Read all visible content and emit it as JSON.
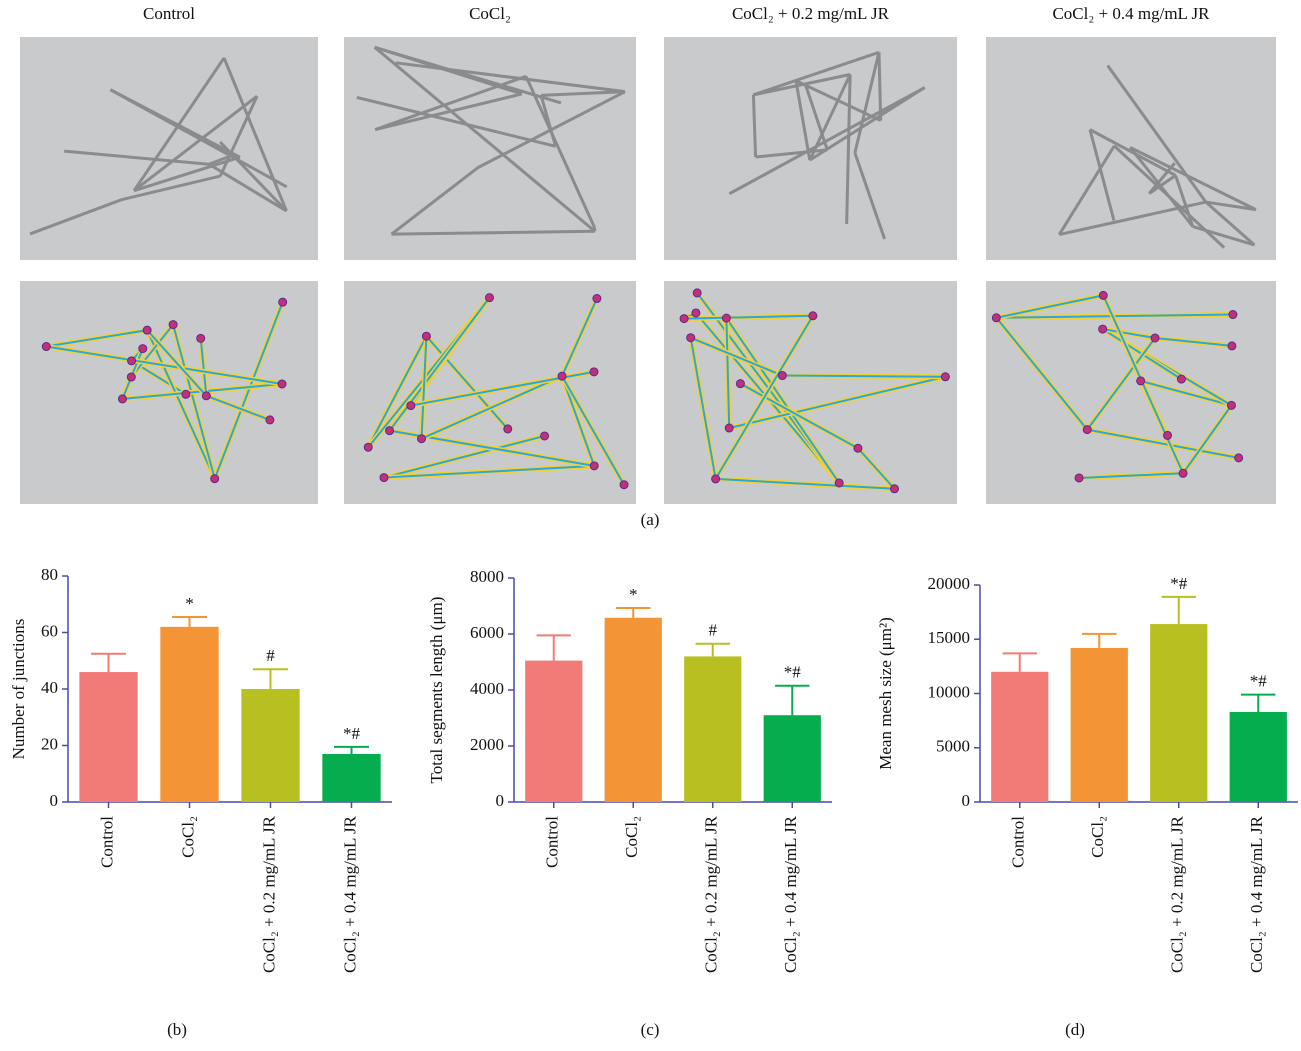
{
  "panel_a": {
    "label": "(a)",
    "columns": [
      "Control",
      "CoCl₂",
      "CoCl₂ + 0.2 mg/mL JR",
      "CoCl₂ + 0.4 mg/mL JR"
    ]
  },
  "chart_data": [
    {
      "type": "bar",
      "panel_label": "(b)",
      "y_label": "Number of junctions",
      "categories": [
        "Control",
        "CoCl₂",
        "CoCl₂ + 0.2 mg/mL JR",
        "CoCl₂ + 0.4 mg/mL JR"
      ],
      "values": [
        46,
        62,
        40,
        17
      ],
      "errors": [
        6.5,
        3.5,
        7,
        2.5
      ],
      "annotations": [
        null,
        "*",
        "#",
        "*#"
      ],
      "colors": [
        "#f37b77",
        "#f39436",
        "#b8c021",
        "#06ad4f"
      ],
      "ylim": [
        0,
        80
      ],
      "yticks": [
        0,
        20,
        40,
        60,
        80
      ]
    },
    {
      "type": "bar",
      "panel_label": "(c)",
      "y_label": "Total segments length (μm)",
      "categories": [
        "Control",
        "CoCl₂",
        "CoCl₂ + 0.2 mg/mL JR",
        "CoCl₂ + 0.4 mg/mL JR"
      ],
      "values": [
        5050,
        6580,
        5200,
        3100
      ],
      "errors": [
        900,
        350,
        450,
        1050
      ],
      "annotations": [
        null,
        "*",
        "#",
        "*#"
      ],
      "colors": [
        "#f37b77",
        "#f39436",
        "#b8c021",
        "#06ad4f"
      ],
      "ylim": [
        0,
        8000
      ],
      "yticks": [
        0,
        2000,
        4000,
        6000,
        8000
      ]
    },
    {
      "type": "bar",
      "panel_label": "(d)",
      "y_label": "Mean mesh size (μm²)",
      "categories": [
        "Control",
        "CoCl₂",
        "CoCl₂ + 0.2 mg/mL JR",
        "CoCl₂ + 0.4 mg/mL JR"
      ],
      "values": [
        12000,
        14200,
        16400,
        8300
      ],
      "errors": [
        1700,
        1300,
        2500,
        1600
      ],
      "annotations": [
        null,
        null,
        "*#",
        "*#"
      ],
      "colors": [
        "#f37b77",
        "#f39436",
        "#b8c021",
        "#06ad4f"
      ],
      "ylim": [
        0,
        20000
      ],
      "yticks": [
        0,
        5000,
        10000,
        15000,
        20000
      ]
    }
  ]
}
